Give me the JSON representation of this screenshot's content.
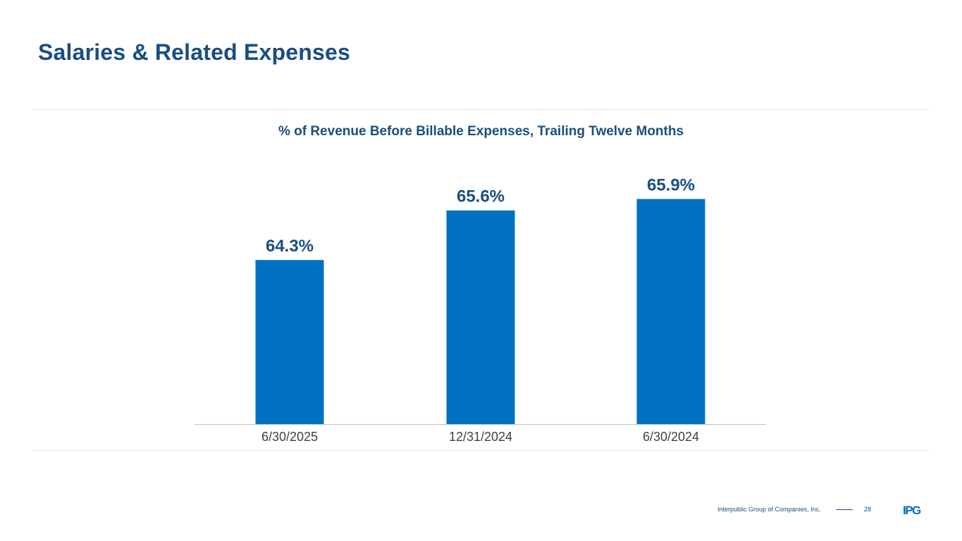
{
  "slide": {
    "title": "Salaries & Related Expenses",
    "subtitle": "% of Revenue Before Billable Expenses, Trailing Twelve Months",
    "footer_company": "Interpublic Group of Companies, Inc.",
    "page_number": "28",
    "logo_text": "IPG"
  },
  "colors": {
    "bar": "#0070c0",
    "label": "#1a4e7f",
    "axis": "#bfbfbf",
    "tick_text": "#404040"
  },
  "chart_data": {
    "type": "bar",
    "title": "% of Revenue Before Billable Expenses, Trailing Twelve Months",
    "categories": [
      "6/30/2025",
      "12/31/2024",
      "6/30/2024"
    ],
    "values": [
      64.3,
      65.6,
      65.9
    ],
    "data_labels": [
      "64.3%",
      "65.6%",
      "65.9%"
    ],
    "unit": "%",
    "xlabel": "",
    "ylabel": "",
    "ylim": [
      60.0,
      66.5
    ],
    "grid": false,
    "legend": "none"
  }
}
